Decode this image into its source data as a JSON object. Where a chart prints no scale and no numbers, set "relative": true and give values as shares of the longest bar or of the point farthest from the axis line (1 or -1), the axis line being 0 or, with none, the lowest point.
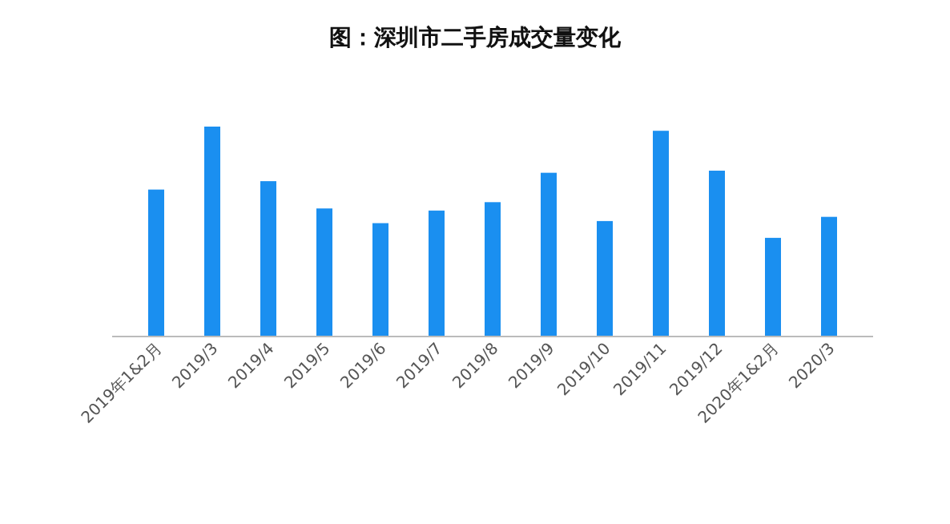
{
  "chart_data": {
    "type": "bar",
    "title": "图：深圳市二手房成交量变化",
    "categories": [
      "2019年1&2月",
      "2019/3",
      "2019/4",
      "2019/5",
      "2019/6",
      "2019/7",
      "2019/8",
      "2019/9",
      "2019/10",
      "2019/11",
      "2019/12",
      "2020年1&2月",
      "2020/3"
    ],
    "values": [
      0.7,
      1,
      0.74,
      0.61,
      0.54,
      0.6,
      0.64,
      0.78,
      0.55,
      0.98,
      0.79,
      0.47,
      0.57
    ],
    "color": "#1a8ff0",
    "relative": true
  }
}
